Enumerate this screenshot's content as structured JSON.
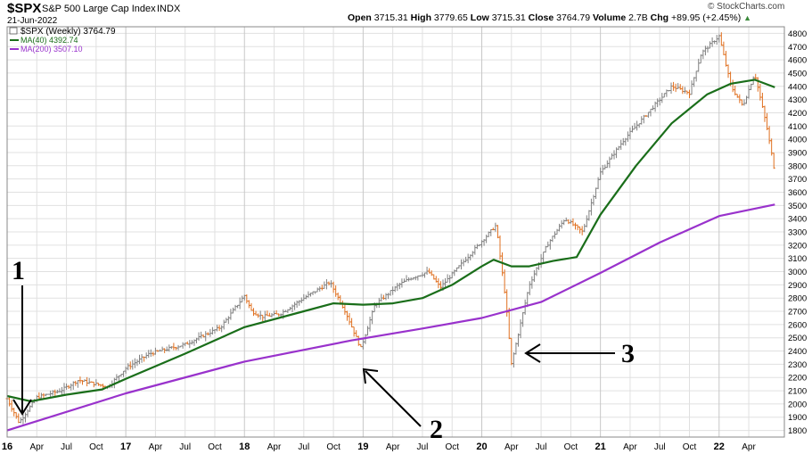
{
  "header": {
    "symbol": "$SPX",
    "name": "S&P 500 Large Cap Index",
    "exchange": "INDX",
    "date": "21-Jun-2022",
    "open_label": "Open",
    "open": "3715.31",
    "high_label": "High",
    "high": "3779.65",
    "low_label": "Low",
    "low": "3715.31",
    "close_label": "Close",
    "close": "3764.79",
    "volume_label": "Volume",
    "volume": "2.7B",
    "chg_label": "Chg",
    "chg": "+89.95 (+2.45%)",
    "brand": "© StockCharts.com"
  },
  "legend": {
    "price_label": "$SPX (Weekly) 3764.79",
    "ma40_label": "MA(40) 4392.74",
    "ma200_label": "MA(200) 3507.10"
  },
  "annotations": [
    "1",
    "2",
    "3"
  ],
  "colors": {
    "up": "#808080",
    "down": "#e07020",
    "ma40": "#1a6e1a",
    "ma200": "#9932cc",
    "grid": "#e0e0e0",
    "arrow": "#000000"
  },
  "chart_data": {
    "type": "line",
    "title": "$SPX S&P 500 Large Cap Index INDX",
    "ylim": [
      1750,
      4850
    ],
    "y_ticks": [
      1800,
      1900,
      2000,
      2100,
      2200,
      2300,
      2400,
      2500,
      2600,
      2700,
      2800,
      2900,
      3000,
      3100,
      3200,
      3300,
      3400,
      3500,
      3600,
      3700,
      3800,
      3900,
      4000,
      4100,
      4200,
      4300,
      4400,
      4500,
      4600,
      4700,
      4800
    ],
    "x_range": [
      2016.0,
      2022.55
    ],
    "x_ticks": [
      {
        "x": 2016.0,
        "label": "16"
      },
      {
        "x": 2016.25,
        "label": "Apr"
      },
      {
        "x": 2016.5,
        "label": "Jul"
      },
      {
        "x": 2016.75,
        "label": "Oct"
      },
      {
        "x": 2017.0,
        "label": "17"
      },
      {
        "x": 2017.25,
        "label": "Apr"
      },
      {
        "x": 2017.5,
        "label": "Jul"
      },
      {
        "x": 2017.75,
        "label": "Oct"
      },
      {
        "x": 2018.0,
        "label": "18"
      },
      {
        "x": 2018.25,
        "label": "Apr"
      },
      {
        "x": 2018.5,
        "label": "Jul"
      },
      {
        "x": 2018.75,
        "label": "Oct"
      },
      {
        "x": 2019.0,
        "label": "19"
      },
      {
        "x": 2019.25,
        "label": "Apr"
      },
      {
        "x": 2019.5,
        "label": "Jul"
      },
      {
        "x": 2019.75,
        "label": "Oct"
      },
      {
        "x": 2020.0,
        "label": "20"
      },
      {
        "x": 2020.25,
        "label": "Apr"
      },
      {
        "x": 2020.5,
        "label": "Jul"
      },
      {
        "x": 2020.75,
        "label": "Oct"
      },
      {
        "x": 2021.0,
        "label": "21"
      },
      {
        "x": 2021.25,
        "label": "Apr"
      },
      {
        "x": 2021.5,
        "label": "Jul"
      },
      {
        "x": 2021.75,
        "label": "Oct"
      },
      {
        "x": 2022.0,
        "label": "22"
      },
      {
        "x": 2022.25,
        "label": "Apr"
      }
    ],
    "x_bold": [
      "16",
      "17",
      "18",
      "19",
      "20",
      "21",
      "22"
    ],
    "series": [
      {
        "name": "$SPX (Weekly)",
        "x": [
          2016.0,
          2016.1,
          2016.25,
          2016.45,
          2016.6,
          2016.85,
          2017.0,
          2017.2,
          2017.5,
          2017.8,
          2018.0,
          2018.06,
          2018.15,
          2018.3,
          2018.5,
          2018.72,
          2018.85,
          2018.98,
          2019.1,
          2019.3,
          2019.4,
          2019.55,
          2019.65,
          2019.85,
          2020.0,
          2020.12,
          2020.2,
          2020.25,
          2020.4,
          2020.55,
          2020.7,
          2020.85,
          2021.0,
          2021.2,
          2021.4,
          2021.6,
          2021.75,
          2021.85,
          2022.0,
          2022.1,
          2022.2,
          2022.3,
          2022.4,
          2022.47
        ],
        "values": [
          2040,
          1860,
          2050,
          2100,
          2180,
          2130,
          2270,
          2380,
          2450,
          2580,
          2820,
          2700,
          2660,
          2680,
          2800,
          2920,
          2700,
          2420,
          2750,
          2900,
          2950,
          3000,
          2880,
          3080,
          3230,
          3350,
          2800,
          2300,
          2900,
          3200,
          3400,
          3300,
          3750,
          4000,
          4200,
          4400,
          4350,
          4650,
          4780,
          4400,
          4250,
          4500,
          4100,
          3750
        ]
      },
      {
        "name": "MA(40)",
        "x": [
          2016.0,
          2016.2,
          2016.5,
          2016.8,
          2017.0,
          2017.5,
          2018.0,
          2018.5,
          2018.75,
          2019.0,
          2019.25,
          2019.5,
          2019.75,
          2020.0,
          2020.1,
          2020.25,
          2020.4,
          2020.6,
          2020.8,
          2021.0,
          2021.3,
          2021.6,
          2021.9,
          2022.1,
          2022.3,
          2022.47
        ],
        "values": [
          2060,
          2020,
          2070,
          2110,
          2190,
          2380,
          2580,
          2700,
          2760,
          2750,
          2760,
          2800,
          2900,
          3040,
          3090,
          3040,
          3040,
          3080,
          3110,
          3430,
          3800,
          4120,
          4340,
          4420,
          4450,
          4392.74
        ]
      },
      {
        "name": "MA(200)",
        "x": [
          2016.0,
          2017.0,
          2018.0,
          2018.9,
          2019.5,
          2020.0,
          2020.5,
          2021.0,
          2021.5,
          2022.0,
          2022.47
        ],
        "values": [
          1800,
          2080,
          2320,
          2480,
          2570,
          2650,
          2770,
          2990,
          3220,
          3420,
          3507.1
        ]
      }
    ]
  }
}
